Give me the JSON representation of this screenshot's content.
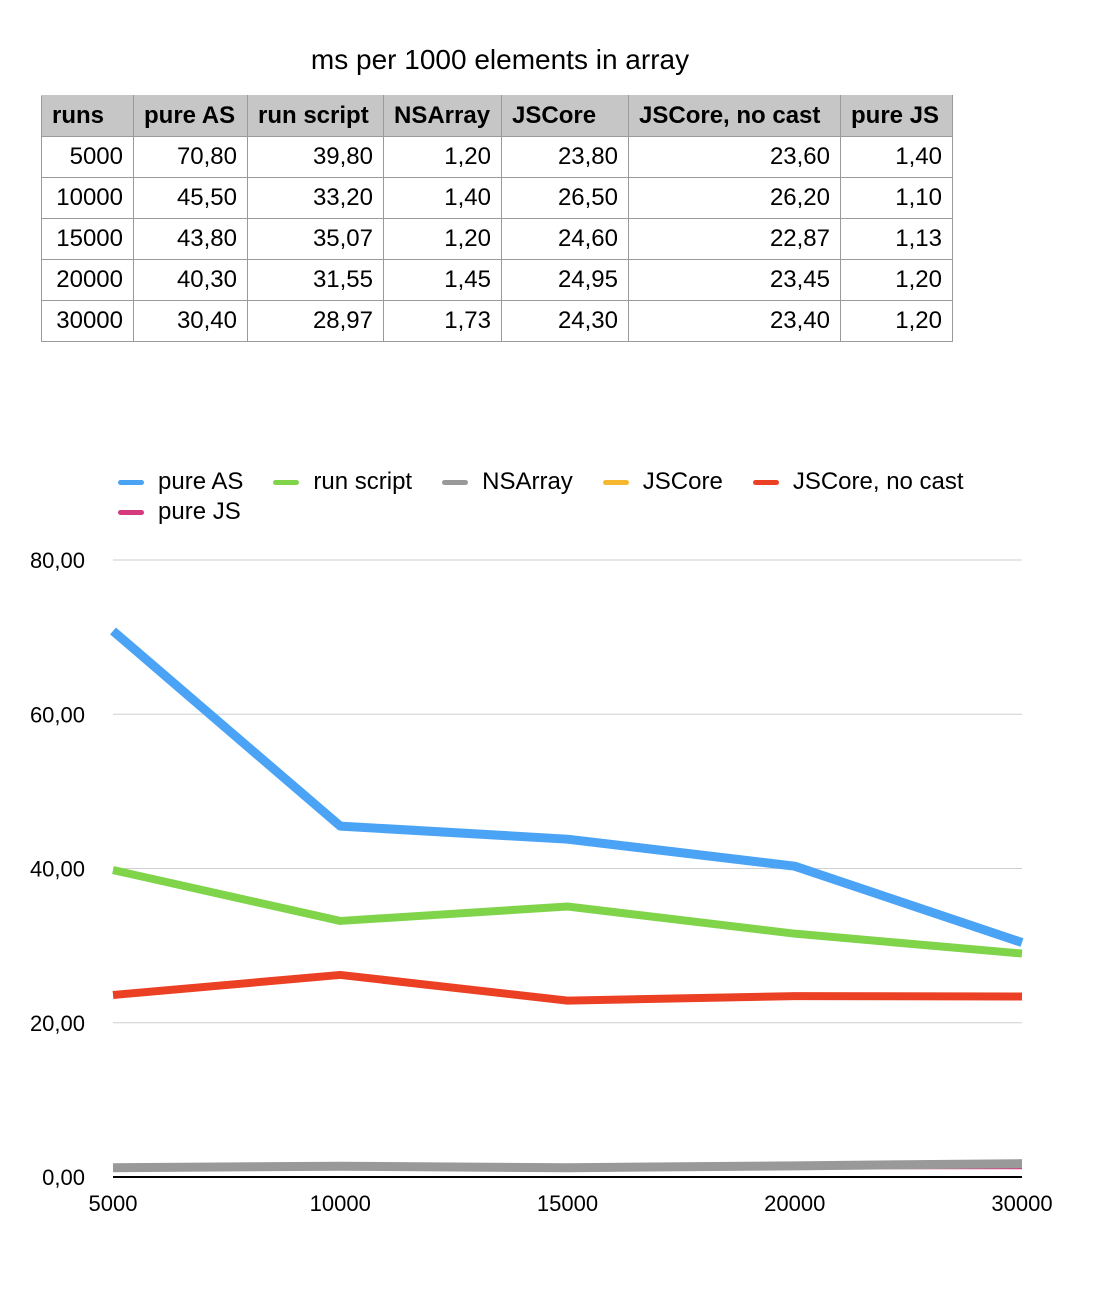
{
  "title": "ms per 1000 elements in array",
  "table": {
    "headers": [
      "runs",
      "pure AS",
      "run script",
      "NSArray",
      "JSCore",
      "JSCore, no cast",
      "pure JS"
    ],
    "rows": [
      [
        "5000",
        "70,80",
        "39,80",
        "1,20",
        "23,80",
        "23,60",
        "1,40"
      ],
      [
        "10000",
        "45,50",
        "33,20",
        "1,40",
        "26,50",
        "26,20",
        "1,10"
      ],
      [
        "15000",
        "43,80",
        "35,07",
        "1,20",
        "24,60",
        "22,87",
        "1,13"
      ],
      [
        "20000",
        "40,30",
        "31,55",
        "1,45",
        "24,95",
        "23,45",
        "1,20"
      ],
      [
        "30000",
        "30,40",
        "28,97",
        "1,73",
        "24,30",
        "23,40",
        "1,20"
      ]
    ]
  },
  "chart_data": {
    "type": "line",
    "title": "ms per 1000 elements in array",
    "categories": [
      "5000",
      "10000",
      "15000",
      "20000",
      "30000"
    ],
    "y_tick_labels": [
      "0,00",
      "20,00",
      "40,00",
      "60,00",
      "80,00"
    ],
    "y_ticks": [
      0,
      20,
      40,
      60,
      80
    ],
    "ylim": [
      0,
      80
    ],
    "grid": true,
    "legend_position": "top",
    "series": [
      {
        "name": "pure AS",
        "color": "#4aa3f5",
        "values": [
          70.8,
          45.5,
          43.8,
          40.3,
          30.4
        ]
      },
      {
        "name": "run script",
        "color": "#7fd44a",
        "values": [
          39.8,
          33.2,
          35.07,
          31.55,
          28.97
        ]
      },
      {
        "name": "NSArray",
        "color": "#999999",
        "values": [
          1.2,
          1.4,
          1.2,
          1.45,
          1.73
        ]
      },
      {
        "name": "JSCore",
        "color": "#f5b82e",
        "values": [
          23.8,
          26.5,
          24.6,
          24.95,
          24.3
        ]
      },
      {
        "name": "JSCore, no cast",
        "color": "#ec4025",
        "values": [
          23.6,
          26.2,
          22.87,
          23.45,
          23.4
        ]
      },
      {
        "name": "pure JS",
        "color": "#d43a7c",
        "values": [
          1.4,
          1.1,
          1.13,
          1.2,
          1.2
        ]
      }
    ]
  }
}
